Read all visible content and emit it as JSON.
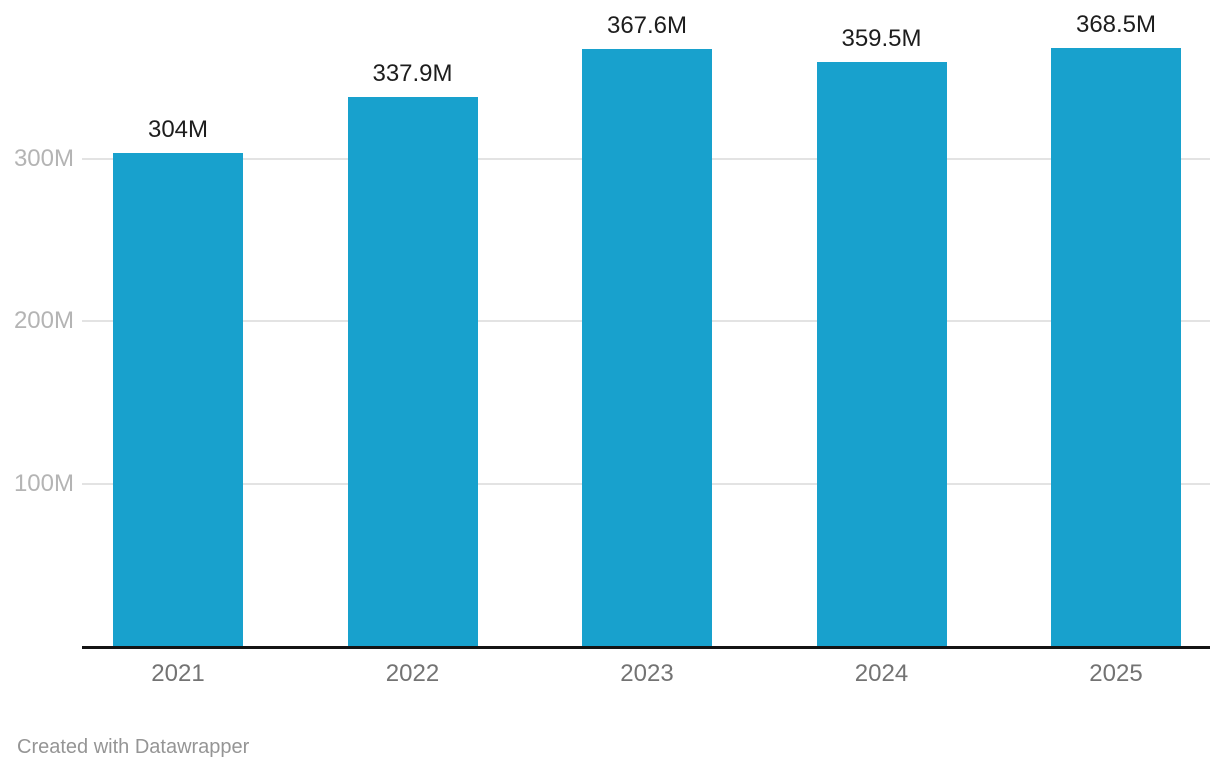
{
  "chart_data": {
    "type": "bar",
    "categories": [
      "2021",
      "2022",
      "2023",
      "2024",
      "2025"
    ],
    "values": [
      304,
      337.9,
      367.6,
      359.5,
      368.5
    ],
    "value_labels": [
      "304M",
      "337.9M",
      "367.6M",
      "359.5M",
      "368.5M"
    ],
    "title": "",
    "xlabel": "",
    "ylabel": "",
    "unit": "M",
    "ylim": [
      0,
      400
    ],
    "y_ticks": [
      {
        "value": 100,
        "label": "100M"
      },
      {
        "value": 200,
        "label": "200M"
      },
      {
        "value": 300,
        "label": "300M"
      }
    ],
    "grid": true,
    "legend_position": "none",
    "bar_color": "#18a1cd"
  },
  "colors": {
    "bar": "#18a1cd",
    "value_label": "#1d1d1d",
    "axis_tick_label": "#b4b4b4",
    "category_label": "#737373",
    "gridline": "#e3e3e3",
    "baseline": "#141414",
    "attribution": "#959595",
    "background": "#ffffff"
  },
  "footer": {
    "attribution": "Created with Datawrapper"
  }
}
